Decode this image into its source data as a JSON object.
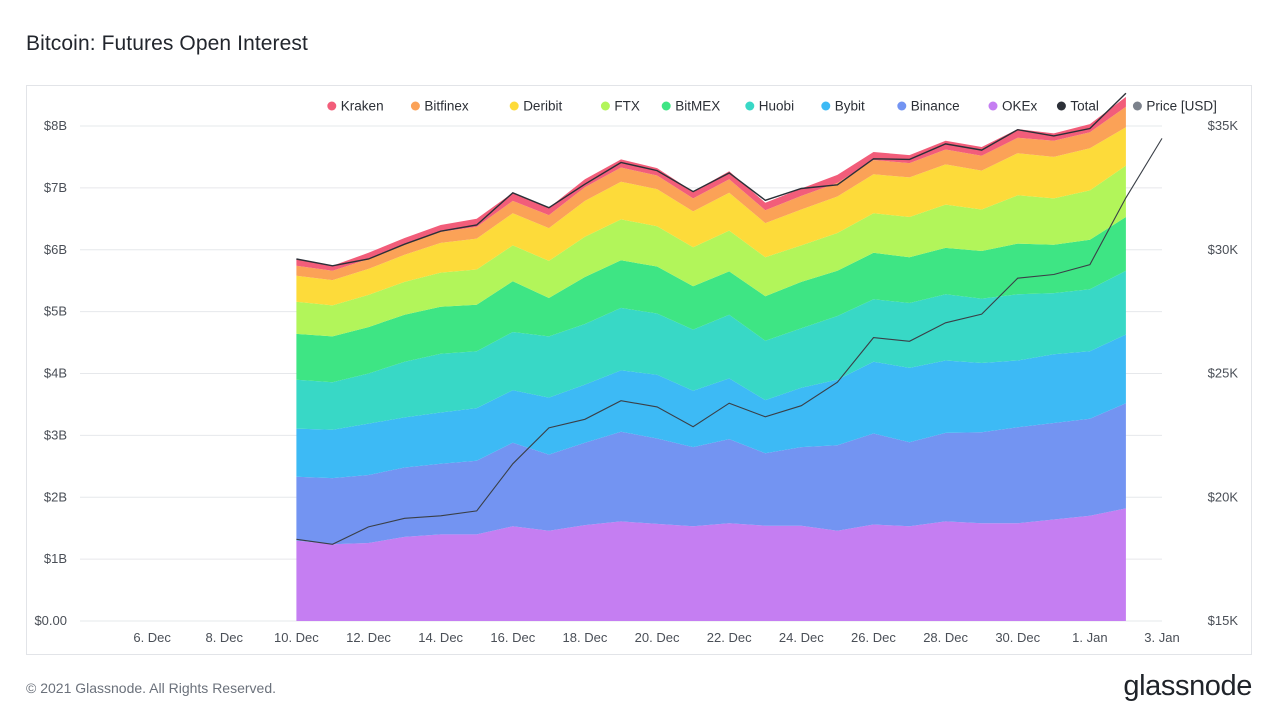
{
  "page": {
    "title": "Bitcoin: Futures Open Interest",
    "copyright": "© 2021 Glassnode. All Rights Reserved.",
    "logo": "glassnode",
    "watermark": "glassnode"
  },
  "chart_data": {
    "type": "area",
    "stacked": true,
    "title": "Bitcoin: Futures Open Interest",
    "x_ticks": [
      "6. Dec",
      "8. Dec",
      "10. Dec",
      "12. Dec",
      "14. Dec",
      "16. Dec",
      "18. Dec",
      "20. Dec",
      "22. Dec",
      "24. Dec",
      "26. Dec",
      "28. Dec",
      "30. Dec",
      "1. Jan",
      "3. Jan"
    ],
    "x_range": [
      "2020-12-04",
      "2021-01-03"
    ],
    "dates": [
      "2020-12-10",
      "2020-12-11",
      "2020-12-12",
      "2020-12-13",
      "2020-12-14",
      "2020-12-15",
      "2020-12-16",
      "2020-12-17",
      "2020-12-18",
      "2020-12-19",
      "2020-12-20",
      "2020-12-21",
      "2020-12-22",
      "2020-12-23",
      "2020-12-24",
      "2020-12-25",
      "2020-12-26",
      "2020-12-27",
      "2020-12-28",
      "2020-12-29",
      "2020-12-30",
      "2020-12-31",
      "2021-01-01",
      "2021-01-02"
    ],
    "y_left": {
      "ticks": [
        "$0.00",
        "$1B",
        "$2B",
        "$3B",
        "$4B",
        "$5B",
        "$6B",
        "$7B",
        "$8B"
      ],
      "ylim": [
        0,
        8000000000
      ]
    },
    "y_right": {
      "ticks": [
        "$15K",
        "$20K",
        "$25K",
        "$30K",
        "$35K"
      ],
      "ylim": [
        15000,
        35000
      ]
    },
    "legend_position": "top-right",
    "series": [
      {
        "name": "OKEx",
        "color": "#c57ef2",
        "values": [
          1.3,
          1.24,
          1.26,
          1.36,
          1.4,
          1.4,
          1.53,
          1.46,
          1.55,
          1.61,
          1.57,
          1.53,
          1.58,
          1.54,
          1.54,
          1.46,
          1.56,
          1.53,
          1.61,
          1.58,
          1.58,
          1.64,
          1.7,
          1.82
        ]
      },
      {
        "name": "Binance",
        "color": "#7394f2",
        "values": [
          1.03,
          1.07,
          1.1,
          1.12,
          1.14,
          1.19,
          1.35,
          1.23,
          1.33,
          1.45,
          1.38,
          1.28,
          1.36,
          1.17,
          1.27,
          1.38,
          1.47,
          1.36,
          1.43,
          1.47,
          1.55,
          1.56,
          1.57,
          1.7
        ]
      },
      {
        "name": "Bybit",
        "color": "#3dbaf5",
        "values": [
          0.78,
          0.78,
          0.83,
          0.81,
          0.83,
          0.85,
          0.85,
          0.92,
          0.94,
          0.99,
          1.03,
          0.91,
          0.98,
          0.86,
          0.96,
          1.06,
          1.16,
          1.2,
          1.17,
          1.12,
          1.08,
          1.11,
          1.09,
          1.11
        ]
      },
      {
        "name": "Huobi",
        "color": "#38d8c6",
        "values": [
          0.79,
          0.77,
          0.81,
          0.9,
          0.95,
          0.92,
          0.94,
          0.99,
          0.98,
          1.01,
          0.99,
          0.99,
          1.03,
          0.96,
          0.96,
          1.03,
          1.01,
          1.05,
          1.07,
          1.04,
          1.07,
          0.99,
          1.0,
          1.03
        ]
      },
      {
        "name": "BitMEX",
        "color": "#3ee584",
        "values": [
          0.74,
          0.74,
          0.75,
          0.76,
          0.76,
          0.75,
          0.82,
          0.62,
          0.76,
          0.77,
          0.76,
          0.7,
          0.7,
          0.72,
          0.75,
          0.73,
          0.75,
          0.74,
          0.75,
          0.77,
          0.82,
          0.78,
          0.8,
          0.87
        ]
      },
      {
        "name": "FTX",
        "color": "#b2f55a",
        "values": [
          0.52,
          0.5,
          0.52,
          0.53,
          0.55,
          0.57,
          0.58,
          0.6,
          0.65,
          0.66,
          0.65,
          0.63,
          0.66,
          0.63,
          0.59,
          0.61,
          0.64,
          0.65,
          0.7,
          0.67,
          0.78,
          0.75,
          0.8,
          0.83
        ]
      },
      {
        "name": "Deribit",
        "color": "#fddb3a",
        "values": [
          0.42,
          0.41,
          0.42,
          0.44,
          0.48,
          0.5,
          0.52,
          0.53,
          0.58,
          0.61,
          0.6,
          0.58,
          0.61,
          0.55,
          0.58,
          0.59,
          0.63,
          0.64,
          0.65,
          0.63,
          0.68,
          0.67,
          0.68,
          0.62
        ]
      },
      {
        "name": "Bitfinex",
        "color": "#fba257",
        "values": [
          0.16,
          0.15,
          0.16,
          0.17,
          0.18,
          0.19,
          0.2,
          0.21,
          0.22,
          0.23,
          0.22,
          0.21,
          0.22,
          0.21,
          0.22,
          0.22,
          0.23,
          0.23,
          0.24,
          0.24,
          0.25,
          0.26,
          0.26,
          0.33
        ]
      },
      {
        "name": "Kraken",
        "color": "#f25d7a",
        "values": [
          0.11,
          0.08,
          0.1,
          0.1,
          0.11,
          0.13,
          0.13,
          0.12,
          0.13,
          0.13,
          0.12,
          0.11,
          0.13,
          0.12,
          0.12,
          0.13,
          0.13,
          0.13,
          0.14,
          0.14,
          0.14,
          0.12,
          0.13,
          0.16
        ]
      },
      {
        "name": "Total",
        "color": "#2c3038",
        "values": [
          5.85,
          5.74,
          5.85,
          6.09,
          6.3,
          6.4,
          6.92,
          6.68,
          7.06,
          7.41,
          7.28,
          6.94,
          7.24,
          6.8,
          6.99,
          7.05,
          7.47,
          7.46,
          7.71,
          7.61,
          7.94,
          7.84,
          7.96,
          8.53
        ]
      },
      {
        "name": "Price [USD]",
        "color": "#7c828c",
        "axis": "right",
        "x": [
          "2020-12-10",
          "2020-12-11",
          "2020-12-12",
          "2020-12-13",
          "2020-12-14",
          "2020-12-15",
          "2020-12-16",
          "2020-12-17",
          "2020-12-18",
          "2020-12-19",
          "2020-12-20",
          "2020-12-21",
          "2020-12-22",
          "2020-12-23",
          "2020-12-24",
          "2020-12-25",
          "2020-12-26",
          "2020-12-27",
          "2020-12-28",
          "2020-12-29",
          "2020-12-30",
          "2020-12-31",
          "2021-01-01",
          "2021-01-02",
          "2021-01-03"
        ],
        "values": [
          18300,
          18100,
          18800,
          19150,
          19250,
          19450,
          21350,
          22800,
          23150,
          23900,
          23650,
          22850,
          23800,
          23250,
          23700,
          24650,
          26450,
          26300,
          27050,
          27400,
          28850,
          29000,
          29400,
          32100,
          34500
        ]
      }
    ],
    "legend": [
      "Kraken",
      "Bitfinex",
      "Deribit",
      "FTX",
      "BitMEX",
      "Huobi",
      "Bybit",
      "Binance",
      "OKEx",
      "Total",
      "Price [USD]"
    ]
  }
}
